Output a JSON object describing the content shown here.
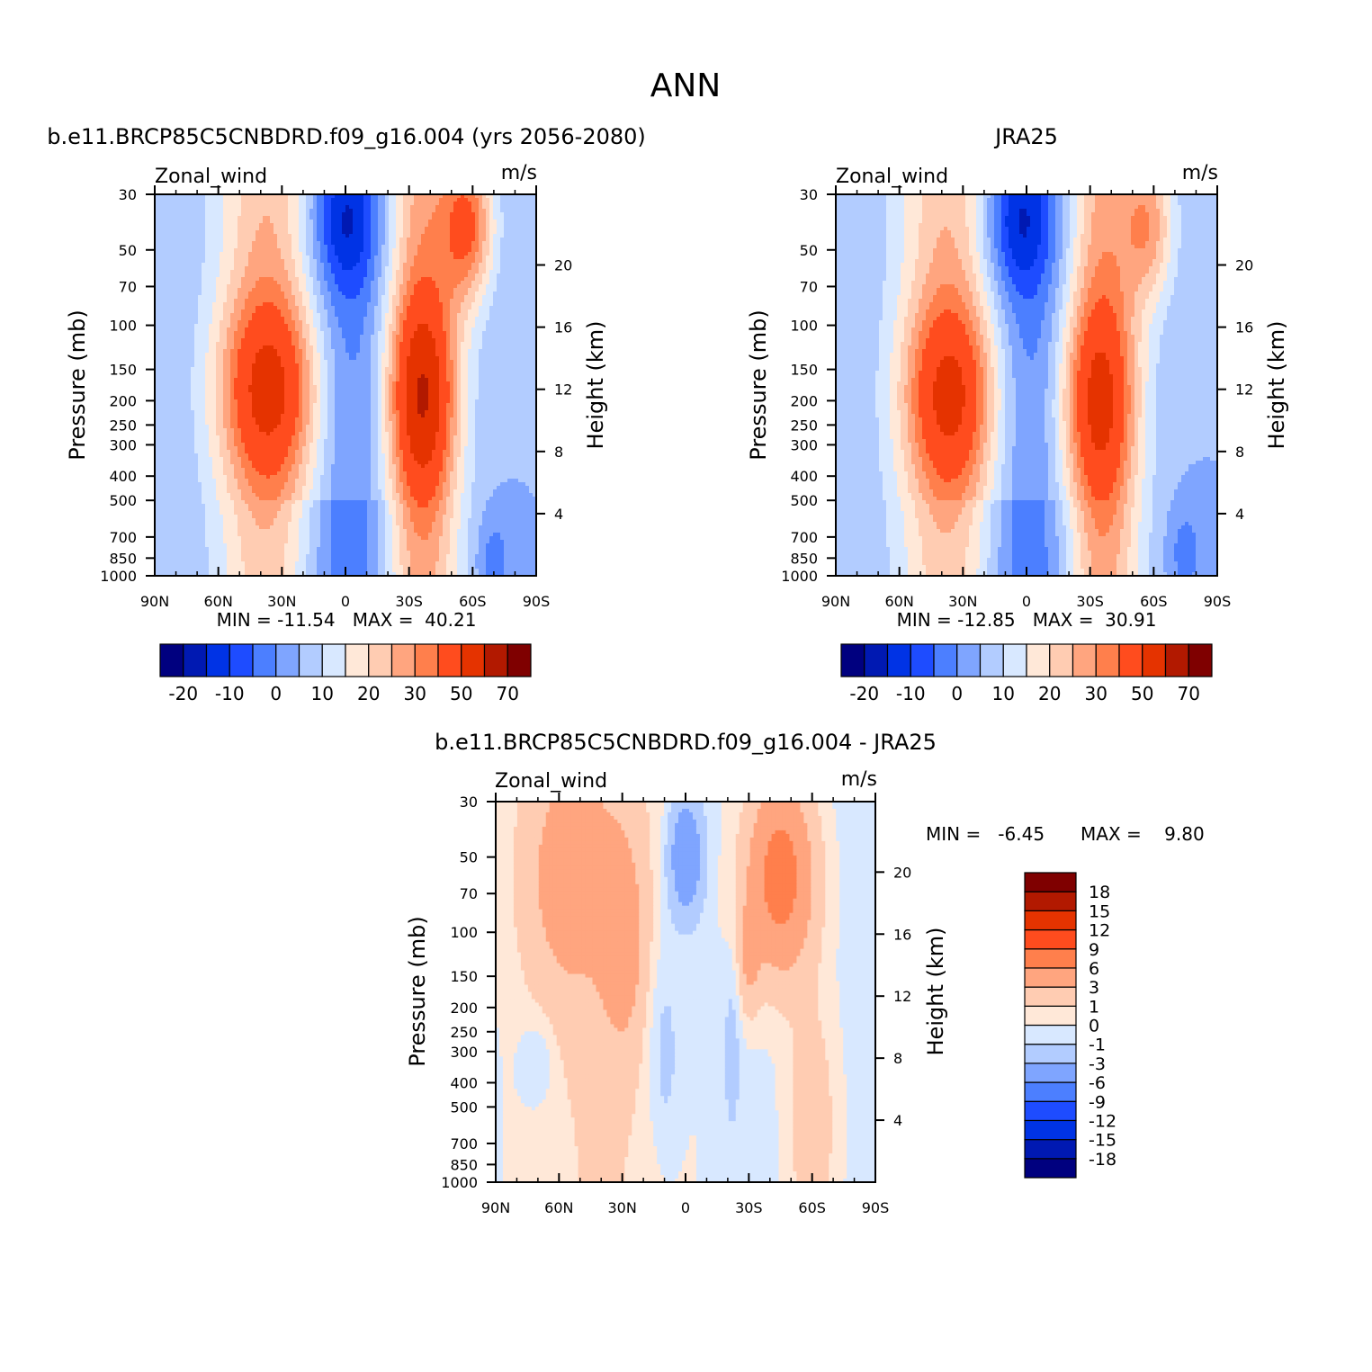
{
  "figure": {
    "title": "ANN"
  },
  "colors": {
    "wind_palette": [
      "#00007f",
      "#0019b2",
      "#0033e5",
      "#1e4cff",
      "#4c7fff",
      "#7fa5ff",
      "#b2ccff",
      "#d8e8ff",
      "#ffe8d8",
      "#ffccb2",
      "#ffa57f",
      "#ff7f4c",
      "#ff4c1e",
      "#e53300",
      "#b21900",
      "#7f0000"
    ],
    "diff_palette": [
      "#00007f",
      "#0019b2",
      "#0033e5",
      "#1e4cff",
      "#4c7fff",
      "#7fa5ff",
      "#b2ccff",
      "#d8e8ff",
      "#ffe8d8",
      "#ffccb2",
      "#ffa57f",
      "#ff7f4c",
      "#ff4c1e",
      "#e53300",
      "#b21900",
      "#7f0000"
    ]
  },
  "chart_data": [
    {
      "type": "heatmap",
      "title": "b.e11.BRCP85C5CNBDRD.f09_g16.004 (yrs 2056-2080)",
      "left_label": "Zonal_wind",
      "right_label": "m/s",
      "ylabel": "Pressure (mb)",
      "ylabel_right": "Height (km)",
      "xlabel": "",
      "x_ticks": [
        "90N",
        "60N",
        "30N",
        "0",
        "30S",
        "60S",
        "90S"
      ],
      "y_ticks": [
        "30",
        "50",
        "70",
        "100",
        "150",
        "200",
        "250",
        "300",
        "400",
        "500",
        "700",
        "850",
        "1000"
      ],
      "y2_ticks": [
        "20",
        "16",
        "12",
        "8",
        "4"
      ],
      "stats": "MIN = -11.54   MAX =  40.21",
      "colorbar_labels": [
        "-20",
        "-10",
        "0",
        "10",
        "20",
        "30",
        "50",
        "70"
      ],
      "x_range": [
        90,
        -90
      ],
      "y_range": [
        30,
        1000
      ],
      "log_y": true,
      "features": [
        {
          "lat": 36,
          "p": 180,
          "sx": 24,
          "sy": 0.85,
          "amp": 26
        },
        {
          "lat": -36,
          "p": 190,
          "sx": 16,
          "sy": 0.95,
          "amp": 30
        },
        {
          "lat": -58,
          "p": 40,
          "sx": 12,
          "sy": 0.7,
          "amp": 28
        },
        {
          "lat": 0,
          "p": 40,
          "sx": 16,
          "sy": 0.6,
          "amp": -12
        },
        {
          "lat": -70,
          "p": 850,
          "sx": 8,
          "sy": 0.4,
          "amp": -8
        }
      ]
    },
    {
      "type": "heatmap",
      "title": "JRA25",
      "left_label": "Zonal_wind",
      "right_label": "m/s",
      "ylabel": "Pressure (mb)",
      "ylabel_right": "Height (km)",
      "xlabel": "",
      "x_ticks": [
        "90N",
        "60N",
        "30N",
        "0",
        "30S",
        "60S",
        "90S"
      ],
      "y_ticks": [
        "30",
        "50",
        "70",
        "100",
        "150",
        "200",
        "250",
        "300",
        "400",
        "500",
        "700",
        "850",
        "1000"
      ],
      "y2_ticks": [
        "20",
        "16",
        "12",
        "8",
        "4"
      ],
      "stats": "MIN = -12.85   MAX =  30.91",
      "colorbar_labels": [
        "-20",
        "-10",
        "0",
        "10",
        "20",
        "30",
        "50",
        "70"
      ],
      "x_range": [
        90,
        -90
      ],
      "y_range": [
        30,
        1000
      ],
      "log_y": true,
      "features": [
        {
          "lat": 36,
          "p": 190,
          "sx": 22,
          "sy": 0.85,
          "amp": 25
        },
        {
          "lat": -33,
          "p": 200,
          "sx": 18,
          "sy": 0.95,
          "amp": 24
        },
        {
          "lat": -58,
          "p": 40,
          "sx": 12,
          "sy": 0.7,
          "amp": 20
        },
        {
          "lat": 5,
          "p": 40,
          "sx": 16,
          "sy": 0.6,
          "amp": -13
        },
        {
          "lat": -75,
          "p": 800,
          "sx": 8,
          "sy": 0.4,
          "amp": -8
        }
      ]
    },
    {
      "type": "heatmap",
      "title": "b.e11.BRCP85C5CNBDRD.f09_g16.004 - JRA25",
      "left_label": "Zonal_wind",
      "right_label": "m/s",
      "ylabel": "Pressure (mb)",
      "ylabel_right": "Height (km)",
      "xlabel": "",
      "x_ticks": [
        "90N",
        "60N",
        "30N",
        "0",
        "30S",
        "60S",
        "90S"
      ],
      "y_ticks": [
        "30",
        "50",
        "70",
        "100",
        "150",
        "200",
        "250",
        "300",
        "400",
        "500",
        "700",
        "850",
        "1000"
      ],
      "y2_ticks": [
        "20",
        "16",
        "12",
        "8",
        "4"
      ],
      "stats_min": "MIN =   -6.45",
      "stats_max": "MAX =    9.80",
      "colorbar_labels": [
        "18",
        "15",
        "12",
        "9",
        "6",
        "3",
        "1",
        "0",
        "-1",
        "-3",
        "-6",
        "-9",
        "-12",
        "-15",
        "-18"
      ],
      "x_range": [
        90,
        -90
      ],
      "y_range": [
        30,
        1000
      ],
      "log_y": true,
      "features": [
        {
          "lat": 55,
          "p": 60,
          "sx": 22,
          "sy": 1.1,
          "amp": 4
        },
        {
          "lat": 30,
          "p": 110,
          "sx": 10,
          "sy": 0.9,
          "amp": 4
        },
        {
          "lat": 0,
          "p": 50,
          "sx": 8,
          "sy": 0.55,
          "amp": -6
        },
        {
          "lat": -45,
          "p": 60,
          "sx": 16,
          "sy": 0.9,
          "amp": 8
        },
        {
          "lat": -30,
          "p": 130,
          "sx": 5,
          "sy": 0.5,
          "amp": 3
        },
        {
          "lat": 10,
          "p": 300,
          "sx": 8,
          "sy": 1.0,
          "amp": -1.8
        },
        {
          "lat": -22,
          "p": 300,
          "sx": 4,
          "sy": 0.8,
          "amp": -1.5
        },
        {
          "lat": -60,
          "p": 600,
          "sx": 12,
          "sy": 1.2,
          "amp": 2.5
        },
        {
          "lat": 70,
          "p": 330,
          "sx": 8,
          "sy": 0.4,
          "amp": -1.5
        }
      ]
    }
  ]
}
